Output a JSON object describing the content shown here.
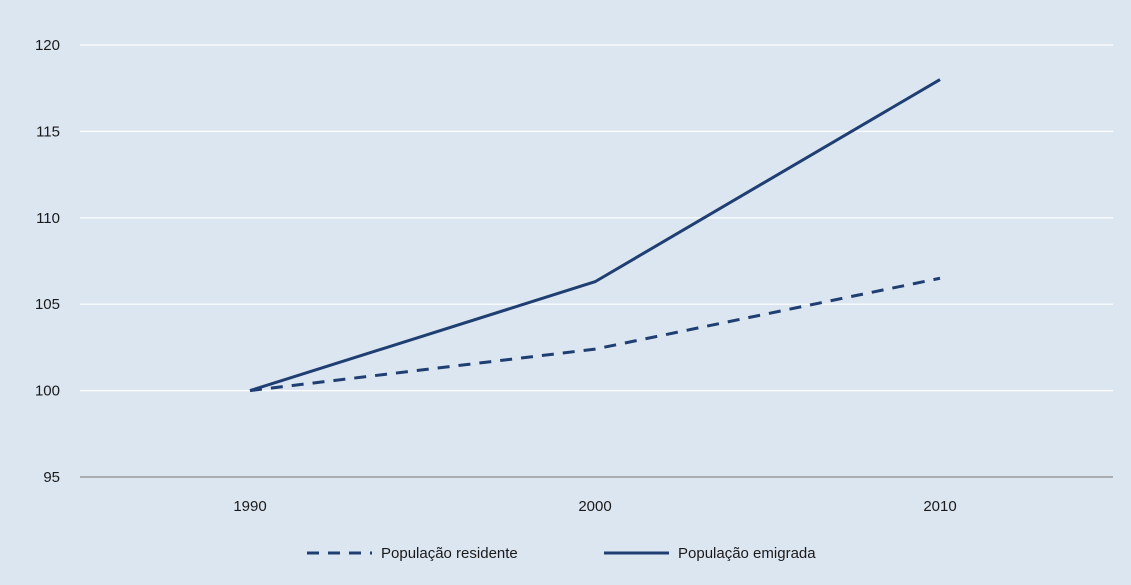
{
  "chart_data": {
    "type": "line",
    "x": [
      "1990",
      "2000",
      "2010"
    ],
    "ylim": [
      95,
      120
    ],
    "yticks": [
      95,
      100,
      105,
      110,
      115,
      120
    ],
    "grid": true,
    "legend_position": "bottom",
    "series": [
      {
        "name": "População residente",
        "values": [
          100,
          102.4,
          106.5
        ],
        "style": "dashed",
        "color": "#1f3f73"
      },
      {
        "name": "População emigrada",
        "values": [
          100,
          106.3,
          118
        ],
        "style": "solid",
        "color": "#1f3f73"
      }
    ],
    "colors": {
      "background": "#dce6f1",
      "grid": "#ffffff",
      "axis": "#8c8c8c"
    }
  }
}
